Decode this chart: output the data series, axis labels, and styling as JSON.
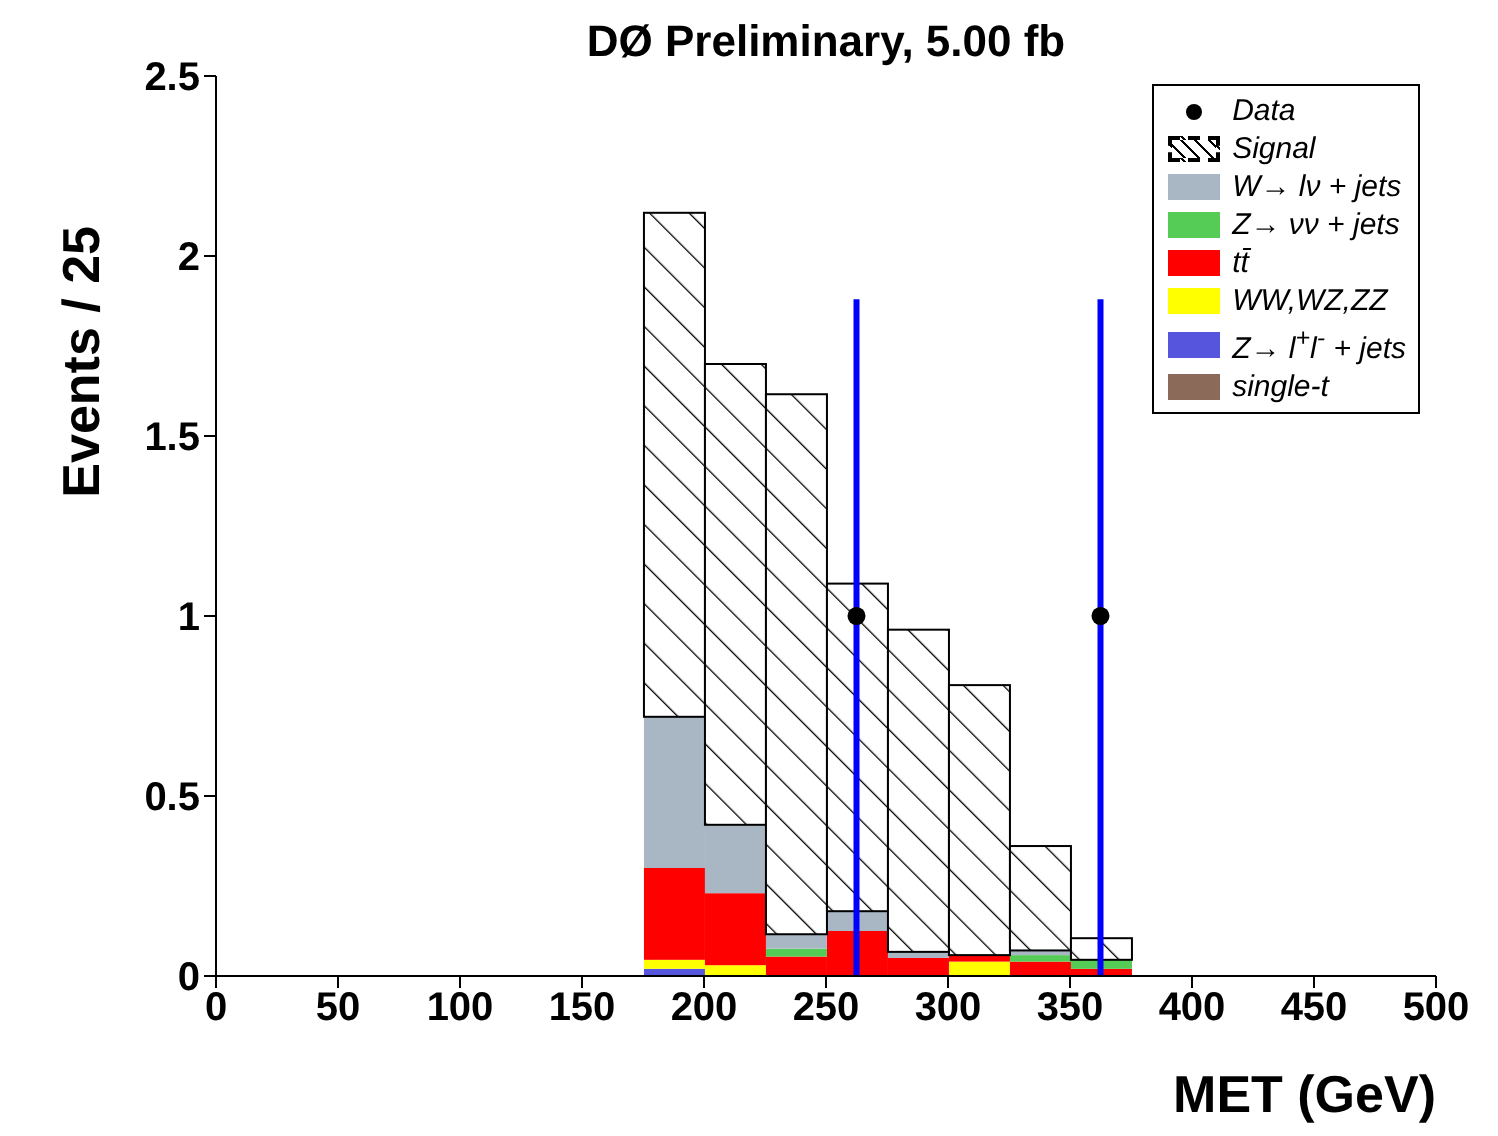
{
  "chart_data": {
    "type": "bar",
    "title": "DØ Preliminary, 5.00 fb",
    "xlabel": "MET (GeV)",
    "ylabel": "Events / 25",
    "stacked": true,
    "x": [
      187.5,
      212.5,
      237.5,
      262.5,
      287.5,
      312.5,
      337.5,
      362.5
    ],
    "series": [
      {
        "name": "single-t",
        "color": "#8b6a5a",
        "values": [
          0,
          0,
          0,
          0,
          0,
          0,
          0,
          0
        ]
      },
      {
        "name": "Z→ l$^{+}$l$^{-}$ + jets",
        "color": "#5555dd",
        "values": [
          0.02,
          0,
          0,
          0,
          0,
          0,
          0,
          0
        ]
      },
      {
        "name": "WW,WZ,ZZ",
        "color": "#ffff00",
        "values": [
          0.025,
          0.03,
          0,
          0,
          0,
          0.04,
          0,
          0
        ]
      },
      {
        "name": "tt̄",
        "color": "#ff0000",
        "values": [
          0.255,
          0.2,
          0.054,
          0.125,
          0.05,
          0.018,
          0.04,
          0.02
        ]
      },
      {
        "name": "Z→ νν + jets",
        "color": "#55cc55",
        "values": [
          0,
          0,
          0.022,
          0,
          0,
          0,
          0.018,
          0.025
        ]
      },
      {
        "name": "W→ lν + jets",
        "color": "#a9b6c4",
        "values": [
          0.42,
          0.19,
          0.04,
          0.055,
          0.017,
          0,
          0.013,
          0
        ]
      },
      {
        "name": "Signal",
        "color": "#000000",
        "line_style": "dashed",
        "values": [
          1.4,
          1.28,
          1.5,
          0.91,
          0.895,
          0.75,
          0.29,
          0.06
        ]
      },
      {
        "name": "Data",
        "type": "scatter",
        "color": "#000000",
        "x": [
          262.5,
          362.5
        ],
        "values": [
          1,
          1
        ],
        "errors": [
          [
            0,
            1.88
          ],
          [
            0,
            1.88
          ]
        ]
      }
    ],
    "xlim": [
      0,
      500
    ],
    "xticks": [
      0,
      50,
      100,
      150,
      200,
      250,
      300,
      350,
      400,
      450,
      500
    ],
    "ylim": [
      0,
      2.5
    ],
    "yticks": [
      0,
      0.5,
      1,
      1.5,
      2,
      2.5
    ],
    "legend": "top right",
    "marker": "circle"
  }
}
